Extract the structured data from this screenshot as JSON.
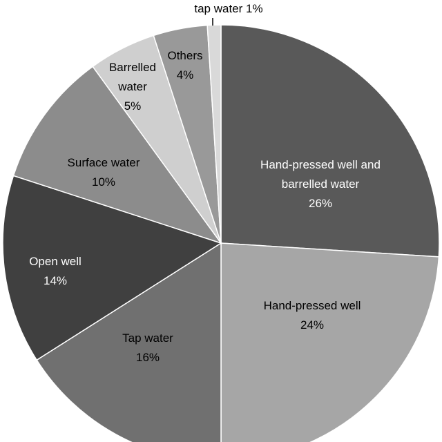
{
  "chart_data": {
    "type": "pie",
    "title": "",
    "start_angle_deg": 0,
    "direction": "clockwise",
    "slices": [
      {
        "label": "Hand-pressed well and barrelled water",
        "value": 26,
        "value_text": "26%",
        "label_lines": [
          "Hand-pressed well and",
          "barrelled water",
          "26%"
        ],
        "color": "#595959",
        "text_color": "#ffffff"
      },
      {
        "label": "Hand-pressed well",
        "value": 24,
        "value_text": "24%",
        "label_lines": [
          "Hand-pressed well",
          "24%"
        ],
        "color": "#a6a6a6",
        "text_color": "#000000"
      },
      {
        "label": "Tap water",
        "value": 16,
        "value_text": "16%",
        "label_lines": [
          "Tap water",
          "16%"
        ],
        "color": "#707070",
        "text_color": "#000000"
      },
      {
        "label": "Open well",
        "value": 14,
        "value_text": "14%",
        "label_lines": [
          "Open well",
          "14%"
        ],
        "color": "#404040",
        "text_color": "#ffffff"
      },
      {
        "label": "Surface water",
        "value": 10,
        "value_text": "10%",
        "label_lines": [
          "Surface water",
          "10%"
        ],
        "color": "#8c8c8c",
        "text_color": "#000000"
      },
      {
        "label": "Barrelled water",
        "value": 5,
        "value_text": "5%",
        "label_lines": [
          "Barrelled",
          "water",
          "5%"
        ],
        "color": "#cfcfcf",
        "text_color": "#000000"
      },
      {
        "label": "Others",
        "value": 4,
        "value_text": "4%",
        "label_lines": [
          "Others",
          "4%"
        ],
        "color": "#999999",
        "text_color": "#000000"
      },
      {
        "label": "tap water",
        "value": 1,
        "value_text": "1%",
        "label_lines": [
          "tap water 1%"
        ],
        "color": "#d9d9d9",
        "text_color": "#000000",
        "outside_label": true
      }
    ]
  }
}
